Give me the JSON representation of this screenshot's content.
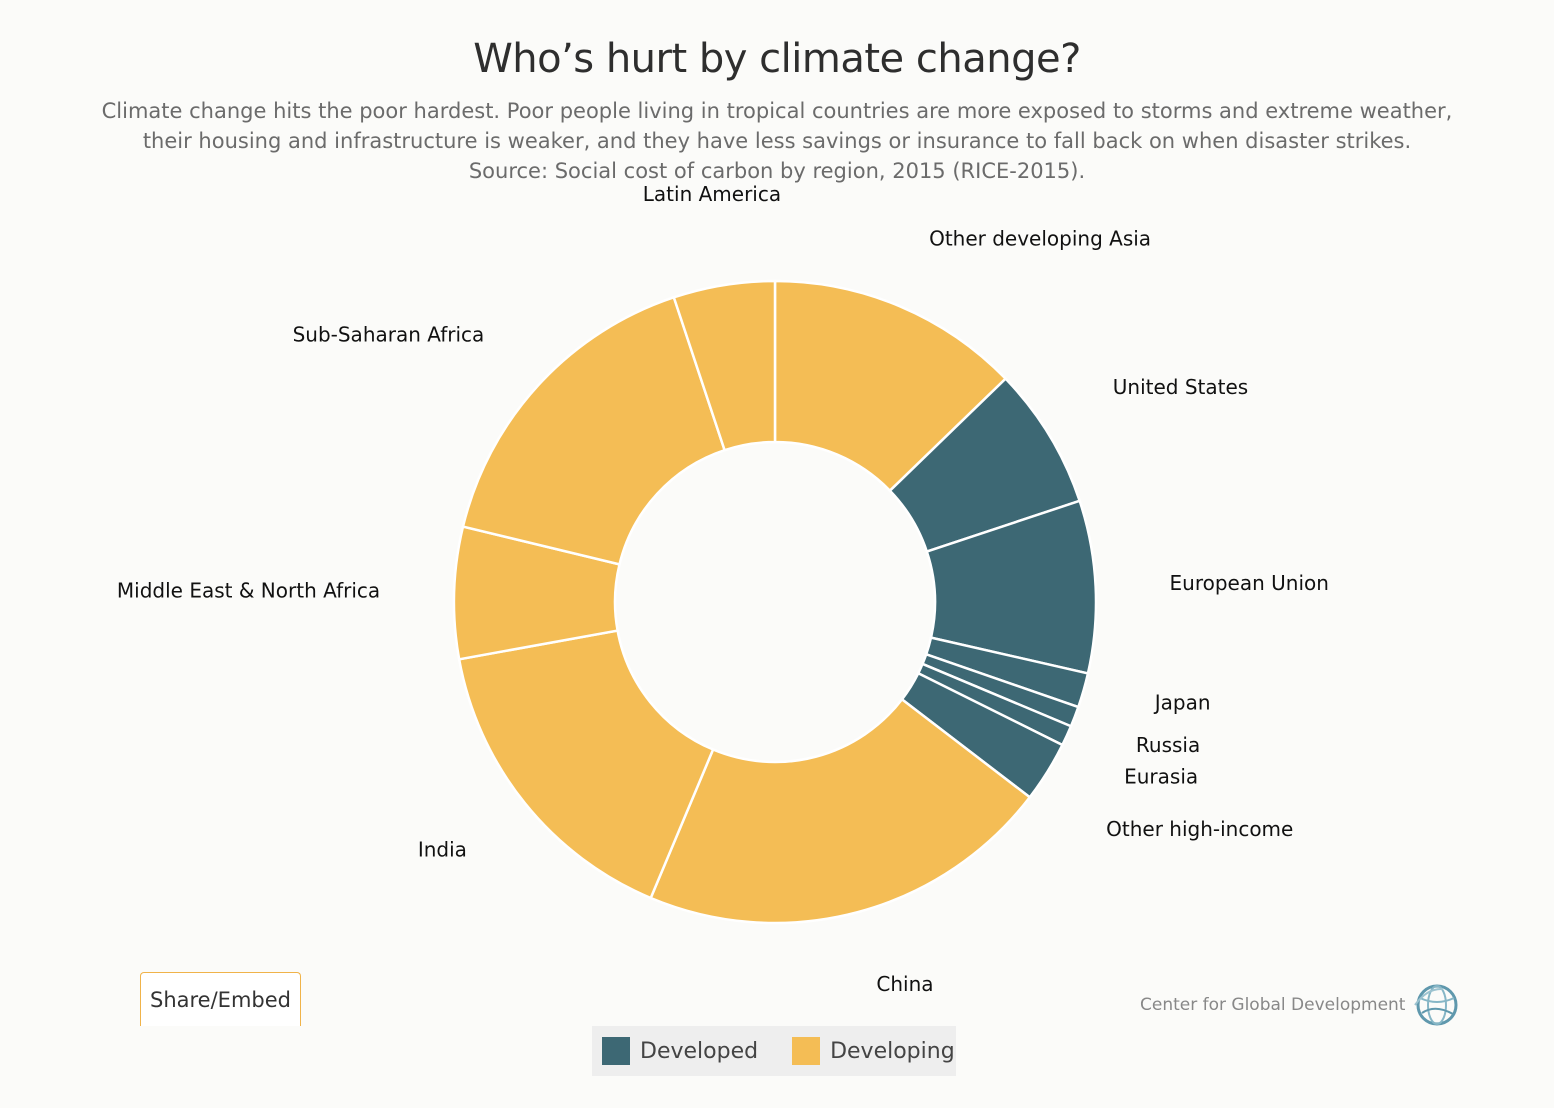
{
  "header": {
    "title": "Who’s hurt by climate change?",
    "subtitle_lines": [
      "Climate change hits the poor hardest. Poor people living in tropical countries are more exposed to storms and extreme weather,",
      "their housing and infrastructure is weaker, and they have less savings or insurance to fall back on when disaster strikes.",
      "Source: Social cost of carbon by region, 2015 (RICE-2015)."
    ]
  },
  "chart_data": {
    "type": "pie",
    "variant": "donut",
    "title": "Who’s hurt by climate change?",
    "unit": "share of global social cost of carbon (%)",
    "slices": [
      {
        "label": "Other developing Asia",
        "value": 12.5,
        "group": "Developing"
      },
      {
        "label": "United States",
        "value": 7.0,
        "group": "Developed"
      },
      {
        "label": "European Union",
        "value": 8.5,
        "group": "Developed"
      },
      {
        "label": "Japan",
        "value": 1.7,
        "group": "Developed"
      },
      {
        "label": "Russia",
        "value": 1.0,
        "group": "Developed"
      },
      {
        "label": "Eurasia",
        "value": 1.0,
        "group": "Developed"
      },
      {
        "label": "Other high-income",
        "value": 3.0,
        "group": "Developed"
      },
      {
        "label": "China",
        "value": 20.5,
        "group": "Developing"
      },
      {
        "label": "India",
        "value": 15.5,
        "group": "Developing"
      },
      {
        "label": "Middle East & North Africa",
        "value": 6.5,
        "group": "Developing"
      },
      {
        "label": "Sub-Saharan Africa",
        "value": 15.8,
        "group": "Developing"
      },
      {
        "label": "Latin America",
        "value": 5.0,
        "group": "Developing"
      }
    ],
    "legend": [
      {
        "label": "Developed",
        "color": "#3d6874"
      },
      {
        "label": "Developing",
        "color": "#f4bd55"
      }
    ],
    "start_angle_deg": 0,
    "direction": "clockwise"
  },
  "footer": {
    "share_label": "Share/Embed",
    "brand": "Center for Global Development",
    "brand_icon": "globe-icon"
  }
}
